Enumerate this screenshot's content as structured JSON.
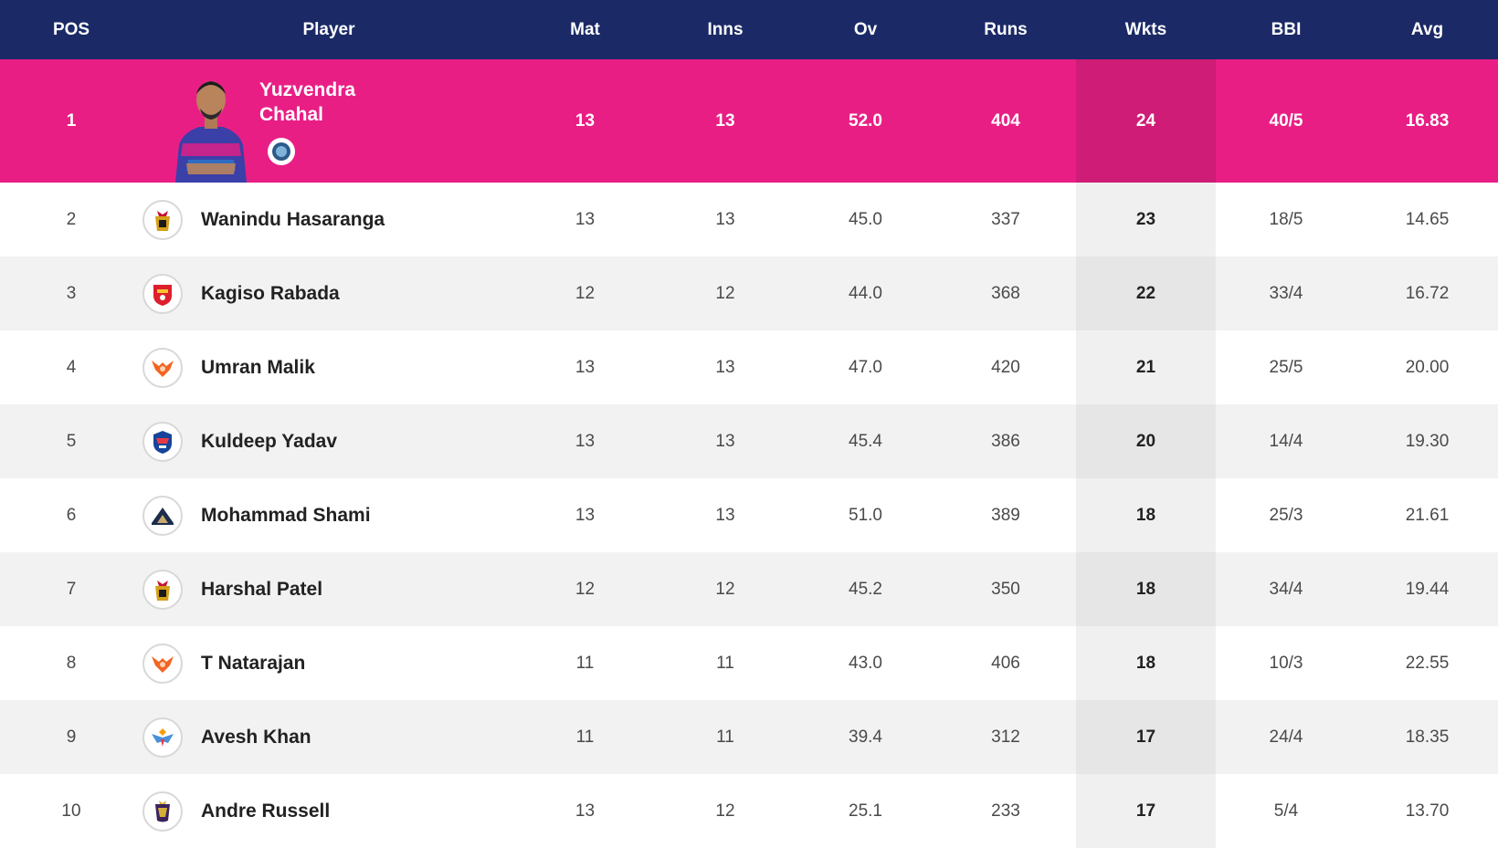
{
  "columns": [
    "POS",
    "Player",
    "Mat",
    "Inns",
    "Ov",
    "Runs",
    "Wkts",
    "BBI",
    "Avg"
  ],
  "colors": {
    "header_bg": "#1b2a66",
    "leader_bg": "#e91e85",
    "wkts_highlight": "#cf1c76"
  },
  "leader": {
    "pos": "1",
    "name_line1": "Yuzvendra",
    "name_line2": "Chahal",
    "mat": "13",
    "inns": "13",
    "ov": "52.0",
    "runs": "404",
    "wkts": "24",
    "bbi": "40/5",
    "avg": "16.83",
    "badge_icon": "team-badge-icon"
  },
  "rows": [
    {
      "pos": "2",
      "name": "Wanindu Hasaranga",
      "team_icon": "rcb-logo-icon",
      "mat": "13",
      "inns": "13",
      "ov": "45.0",
      "runs": "337",
      "wkts": "23",
      "bbi": "18/5",
      "avg": "14.65"
    },
    {
      "pos": "3",
      "name": "Kagiso Rabada",
      "team_icon": "pbks-logo-icon",
      "mat": "12",
      "inns": "12",
      "ov": "44.0",
      "runs": "368",
      "wkts": "22",
      "bbi": "33/4",
      "avg": "16.72"
    },
    {
      "pos": "4",
      "name": "Umran Malik",
      "team_icon": "srh-logo-icon",
      "mat": "13",
      "inns": "13",
      "ov": "47.0",
      "runs": "420",
      "wkts": "21",
      "bbi": "25/5",
      "avg": "20.00"
    },
    {
      "pos": "5",
      "name": "Kuldeep Yadav",
      "team_icon": "dc-logo-icon",
      "mat": "13",
      "inns": "13",
      "ov": "45.4",
      "runs": "386",
      "wkts": "20",
      "bbi": "14/4",
      "avg": "19.30"
    },
    {
      "pos": "6",
      "name": "Mohammad Shami",
      "team_icon": "gt-logo-icon",
      "mat": "13",
      "inns": "13",
      "ov": "51.0",
      "runs": "389",
      "wkts": "18",
      "bbi": "25/3",
      "avg": "21.61"
    },
    {
      "pos": "7",
      "name": "Harshal Patel",
      "team_icon": "rcb-logo-icon",
      "mat": "12",
      "inns": "12",
      "ov": "45.2",
      "runs": "350",
      "wkts": "18",
      "bbi": "34/4",
      "avg": "19.44"
    },
    {
      "pos": "8",
      "name": "T Natarajan",
      "team_icon": "srh-logo-icon",
      "mat": "11",
      "inns": "11",
      "ov": "43.0",
      "runs": "406",
      "wkts": "18",
      "bbi": "10/3",
      "avg": "22.55"
    },
    {
      "pos": "9",
      "name": "Avesh Khan",
      "team_icon": "lsg-logo-icon",
      "mat": "11",
      "inns": "11",
      "ov": "39.4",
      "runs": "312",
      "wkts": "17",
      "bbi": "24/4",
      "avg": "18.35"
    },
    {
      "pos": "10",
      "name": "Andre Russell",
      "team_icon": "kkr-logo-icon",
      "mat": "13",
      "inns": "12",
      "ov": "25.1",
      "runs": "233",
      "wkts": "17",
      "bbi": "5/4",
      "avg": "13.70"
    }
  ]
}
